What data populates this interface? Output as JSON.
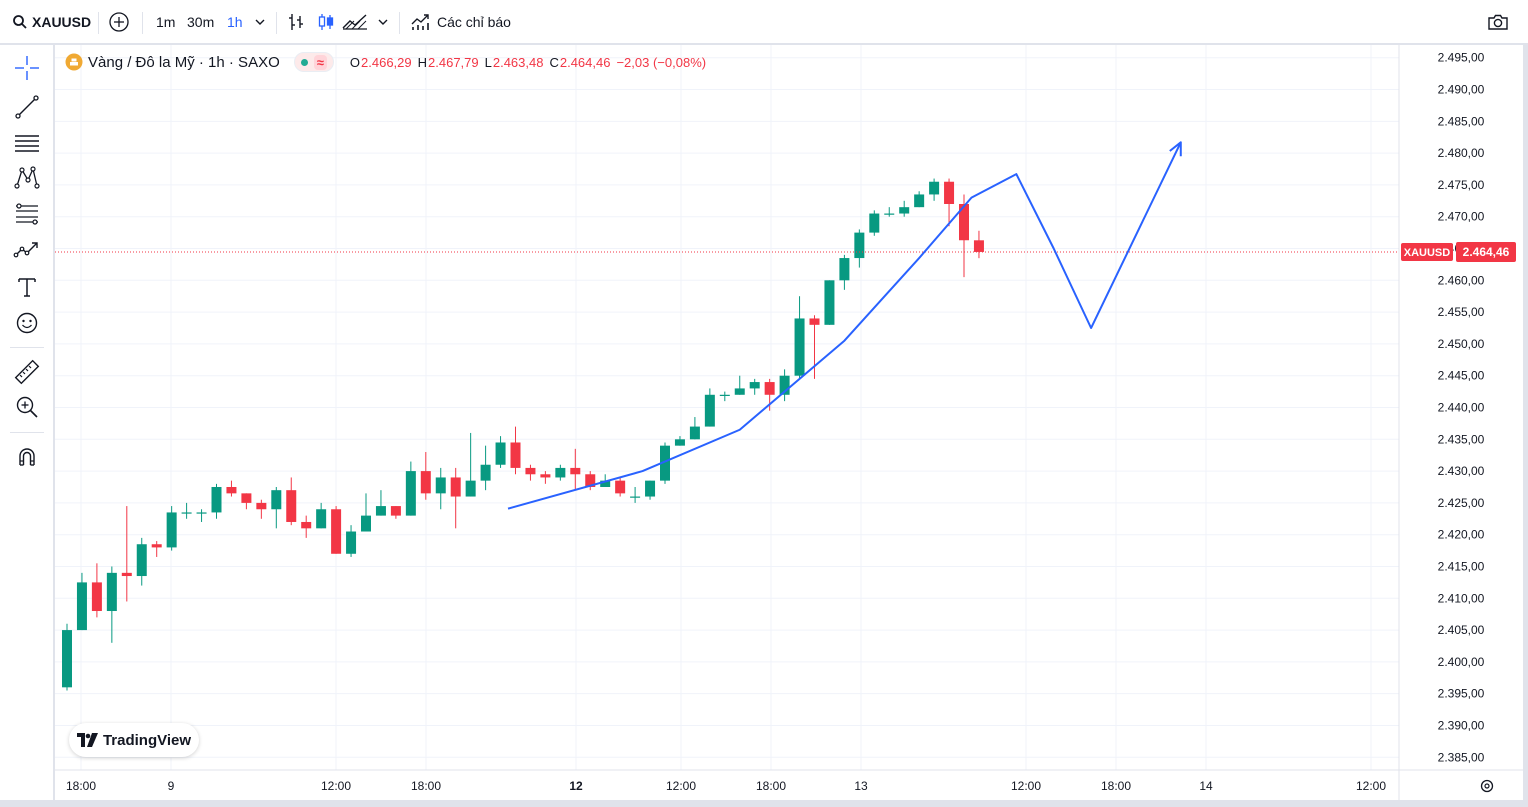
{
  "topbar": {
    "symbol": "XAUUSD",
    "intervals": [
      "1m",
      "30m",
      "1h"
    ],
    "active_interval": "1h",
    "indicators_label": "Các chỉ báo"
  },
  "legend": {
    "title": "Vàng / Đô la Mỹ · 1h · SAXO",
    "o_label": "O",
    "o_value": "2.466,29",
    "h_label": "H",
    "h_value": "2.467,79",
    "l_label": "L",
    "l_value": "2.463,48",
    "c_label": "C",
    "c_value": "2.464,46",
    "change": "−2,03 (−0,08%)"
  },
  "price_tag": {
    "symbol": "XAUUSD",
    "value": "2.464,46"
  },
  "brand": "TradingView",
  "colors": {
    "up": "#089981",
    "down": "#f23645",
    "drawing": "#2962ff",
    "grid": "#f0f3fa"
  },
  "sidebar_tools": [
    "crosshair-icon",
    "trendline-icon",
    "parallel-channel-icon",
    "pattern-icon",
    "fib-icon",
    "forecast-icon",
    "text-icon",
    "emoji-icon",
    "ruler-icon",
    "zoom-in-icon",
    "magnet-icon"
  ],
  "chart_data": {
    "type": "candlestick",
    "y_ticks": [
      "2.495,00",
      "2.490,00",
      "2.485,00",
      "2.480,00",
      "2.475,00",
      "2.470,00",
      "2.465,00",
      "2.460,00",
      "2.455,00",
      "2.450,00",
      "2.445,00",
      "2.440,00",
      "2.435,00",
      "2.430,00",
      "2.425,00",
      "2.420,00",
      "2.415,00",
      "2.410,00",
      "2.405,00",
      "2.400,00",
      "2.395,00",
      "2.390,00",
      "2.385,00"
    ],
    "ylim": [
      2383,
      2497
    ],
    "x_ticks": [
      {
        "label": "18:00",
        "bold": false
      },
      {
        "label": "9",
        "bold": false
      },
      {
        "label": "12:00",
        "bold": false
      },
      {
        "label": "18:00",
        "bold": false
      },
      {
        "label": "12",
        "bold": true
      },
      {
        "label": "12:00",
        "bold": false
      },
      {
        "label": "18:00",
        "bold": false
      },
      {
        "label": "13",
        "bold": false
      },
      {
        "label": "12:00",
        "bold": false
      },
      {
        "label": "18:00",
        "bold": false
      },
      {
        "label": "14",
        "bold": false
      },
      {
        "label": "12:00",
        "bold": false
      }
    ],
    "last_price": 2464.46,
    "candles": [
      [
        2396,
        2405,
        2395.5,
        2406
      ],
      [
        2405,
        2412.5,
        2405,
        2414
      ],
      [
        2412.5,
        2408,
        2407,
        2415.5
      ],
      [
        2408,
        2414,
        2403,
        2415
      ],
      [
        2414,
        2413.5,
        2409.5,
        2424.5
      ],
      [
        2413.5,
        2418.5,
        2412,
        2419.5
      ],
      [
        2418.5,
        2418,
        2416.5,
        2419
      ],
      [
        2418,
        2423.5,
        2417.5,
        2424.5
      ],
      [
        2423.5,
        2423.5,
        2422.5,
        2425
      ],
      [
        2423.5,
        2423.5,
        2422,
        2424
      ],
      [
        2423.5,
        2427.5,
        2422.5,
        2428
      ],
      [
        2427.5,
        2426.5,
        2426,
        2428.5
      ],
      [
        2426.5,
        2425,
        2424,
        2426.5
      ],
      [
        2425,
        2424,
        2422.5,
        2425.5
      ],
      [
        2424,
        2427,
        2421,
        2427.5
      ],
      [
        2427,
        2422,
        2421.5,
        2429
      ],
      [
        2422,
        2421,
        2419.5,
        2423
      ],
      [
        2421,
        2424,
        2421,
        2425
      ],
      [
        2424,
        2417,
        2417,
        2424.5
      ],
      [
        2417,
        2420.5,
        2416.5,
        2421.5
      ],
      [
        2420.5,
        2423,
        2420.5,
        2426.5
      ],
      [
        2423,
        2424.5,
        2423,
        2427
      ],
      [
        2424.5,
        2423,
        2422.5,
        2424.5
      ],
      [
        2423,
        2430,
        2423,
        2431.5
      ],
      [
        2430,
        2426.5,
        2425.5,
        2433
      ],
      [
        2426.5,
        2429,
        2424,
        2430.5
      ],
      [
        2429,
        2426,
        2421,
        2430.5
      ],
      [
        2426,
        2428.5,
        2426,
        2436
      ],
      [
        2428.5,
        2431,
        2427,
        2434
      ],
      [
        2431,
        2434.5,
        2430.5,
        2435.5
      ],
      [
        2434.5,
        2430.5,
        2429.5,
        2437
      ],
      [
        2430.5,
        2429.5,
        2428.5,
        2431
      ],
      [
        2429.5,
        2429,
        2428,
        2430
      ],
      [
        2429,
        2430.5,
        2428.5,
        2431
      ],
      [
        2430.5,
        2429.5,
        2427,
        2433.5
      ],
      [
        2429.5,
        2427.5,
        2427,
        2430
      ],
      [
        2427.5,
        2428.5,
        2427.5,
        2429.5
      ],
      [
        2428.5,
        2426.5,
        2426,
        2429
      ],
      [
        2426,
        2426,
        2425,
        2427.5
      ],
      [
        2426,
        2428.5,
        2425.5,
        2428.5
      ],
      [
        2428.5,
        2434,
        2428,
        2434.5
      ],
      [
        2434,
        2435,
        2434,
        2435.5
      ],
      [
        2435,
        2437,
        2435,
        2438.5
      ],
      [
        2437,
        2442,
        2437,
        2443
      ],
      [
        2442,
        2442,
        2441,
        2442.5
      ],
      [
        2442,
        2443,
        2442,
        2445
      ],
      [
        2443,
        2444,
        2442,
        2444.5
      ],
      [
        2444,
        2442,
        2439.5,
        2444.5
      ],
      [
        2442,
        2445,
        2441,
        2446
      ],
      [
        2445,
        2454,
        2444.5,
        2457.5
      ],
      [
        2454,
        2453,
        2444.5,
        2454.5
      ],
      [
        2453,
        2460,
        2453,
        2460
      ],
      [
        2460,
        2463.5,
        2458.5,
        2464
      ],
      [
        2463.5,
        2467.5,
        2462,
        2468
      ],
      [
        2467.5,
        2470.5,
        2467,
        2471
      ],
      [
        2470.5,
        2470.5,
        2470,
        2471.5
      ],
      [
        2470.5,
        2471.5,
        2470,
        2472.5
      ],
      [
        2471.5,
        2473.5,
        2471.5,
        2474
      ],
      [
        2473.5,
        2475.5,
        2472.5,
        2476
      ],
      [
        2475.5,
        2472,
        2468.5,
        2476
      ],
      [
        2472,
        2466.3,
        2460.5,
        2473.5
      ],
      [
        2466.29,
        2464.46,
        2463.48,
        2467.79
      ]
    ],
    "drawing_zigzag": [
      [
        29.5,
        2424.1
      ],
      [
        38.5,
        2430.0
      ],
      [
        45,
        2436.5
      ],
      [
        52,
        2450.5
      ],
      [
        57,
        2463.5
      ],
      [
        60.5,
        2473.0
      ],
      [
        63.5,
        2476.7
      ],
      [
        66,
        2465.0
      ],
      [
        68.5,
        2452.5
      ],
      [
        74.5,
        2481.7
      ]
    ]
  }
}
